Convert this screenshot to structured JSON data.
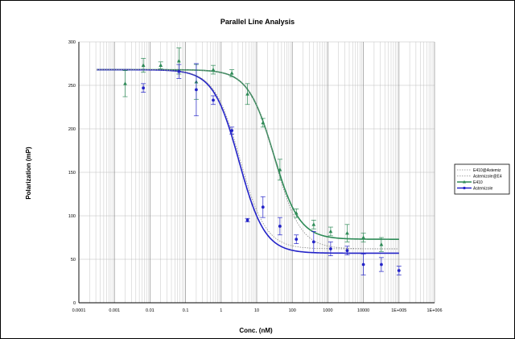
{
  "chart_data": {
    "type": "scatter",
    "title": "Parallel Line Analysis",
    "xlabel": "Conc. (nM)",
    "ylabel": "Polarization (mP)",
    "x_scale": "log",
    "xlim": [
      0.0001,
      1000000
    ],
    "ylim": [
      0,
      300
    ],
    "x_ticks": [
      "0.0001",
      "0.001",
      "0.01",
      "0.1",
      "1",
      "10",
      "100",
      "1000",
      "10000",
      "1E+005",
      "1E+006"
    ],
    "y_ticks": [
      "0",
      "50",
      "100",
      "150",
      "200",
      "250",
      "300"
    ],
    "grid": true,
    "legend_position": "right",
    "legend": [
      "E410@Astemiz",
      "Astemizole@E4",
      "E410",
      "Astemizole"
    ],
    "colors": {
      "E410": "#2e8b57",
      "Astemizole": "#2323c8",
      "fit_dotted": "#8a8a8a",
      "grid": "#bdbdbd"
    },
    "series": [
      {
        "name": "E410",
        "style": "marker-triangle",
        "points": [
          {
            "x": 0.002,
            "y": 252,
            "err": 15
          },
          {
            "x": 0.0065,
            "y": 273,
            "err": 8
          },
          {
            "x": 0.02,
            "y": 273,
            "err": 4
          },
          {
            "x": 0.065,
            "y": 278,
            "err": 15
          },
          {
            "x": 0.2,
            "y": 254,
            "err": 20
          },
          {
            "x": 0.6,
            "y": 268,
            "err": 5
          },
          {
            "x": 2,
            "y": 264,
            "err": 4
          },
          {
            "x": 5.5,
            "y": 240,
            "err": 12
          },
          {
            "x": 15,
            "y": 207,
            "err": 5
          },
          {
            "x": 45,
            "y": 153,
            "err": 12
          },
          {
            "x": 130,
            "y": 103,
            "err": 5
          },
          {
            "x": 400,
            "y": 90,
            "err": 5
          },
          {
            "x": 1200,
            "y": 82,
            "err": 5
          },
          {
            "x": 3500,
            "y": 80,
            "err": 10
          },
          {
            "x": 10000,
            "y": 75,
            "err": 5
          },
          {
            "x": 32000,
            "y": 67,
            "err": 8
          }
        ]
      },
      {
        "name": "Astemizole",
        "style": "marker-circle",
        "points": [
          {
            "x": 0.0065,
            "y": 247,
            "err": 5
          },
          {
            "x": 0.065,
            "y": 266,
            "err": 8
          },
          {
            "x": 0.2,
            "y": 245,
            "err": 30
          },
          {
            "x": 0.6,
            "y": 233,
            "err": 5
          },
          {
            "x": 2,
            "y": 198,
            "err": 4
          },
          {
            "x": 5.5,
            "y": 95,
            "err": 2
          },
          {
            "x": 15,
            "y": 110,
            "err": 12
          },
          {
            "x": 45,
            "y": 88,
            "err": 10
          },
          {
            "x": 130,
            "y": 73,
            "err": 5
          },
          {
            "x": 400,
            "y": 70,
            "err": 12
          },
          {
            "x": 1200,
            "y": 62,
            "err": 8
          },
          {
            "x": 3500,
            "y": 60,
            "err": 5
          },
          {
            "x": 10000,
            "y": 44,
            "err": 12
          },
          {
            "x": 32000,
            "y": 44,
            "err": 8
          },
          {
            "x": 100000,
            "y": 37,
            "err": 5
          }
        ]
      }
    ],
    "fits": [
      {
        "name": "E410",
        "top": 268,
        "bottom": 73,
        "ec50": 30,
        "hill": 1.2
      },
      {
        "name": "Astemizole",
        "top": 268,
        "bottom": 57,
        "ec50": 3.2,
        "hill": 1.2
      },
      {
        "name": "E410@Astemiz",
        "top": 268,
        "bottom": 62,
        "ec50": 32,
        "hill": 1.2,
        "dotted": true
      },
      {
        "name": "Astemizole@E4",
        "top": 268,
        "bottom": 62,
        "ec50": 3.4,
        "hill": 1.2,
        "dotted": true
      }
    ]
  }
}
